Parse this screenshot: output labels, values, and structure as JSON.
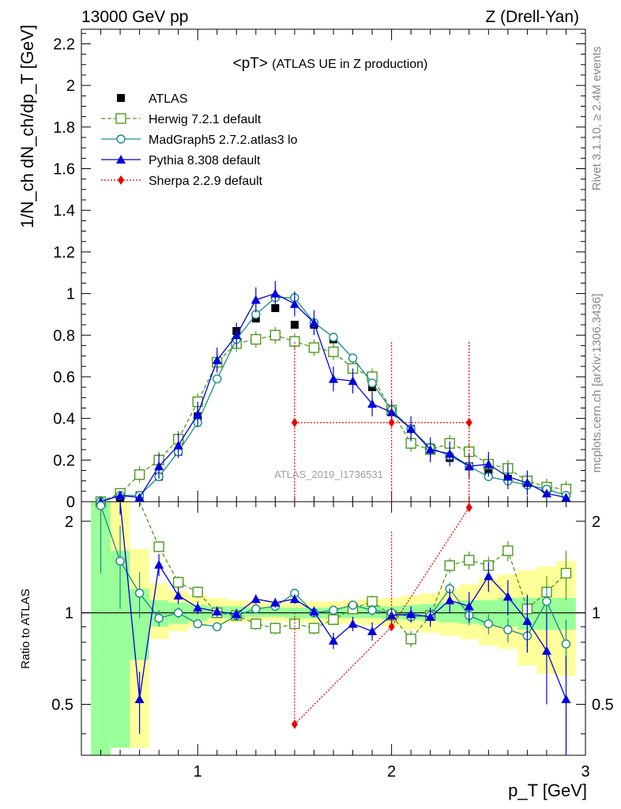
{
  "header": {
    "left": "13000 GeV pp",
    "right": "Z (Drell-Yan)"
  },
  "side_labels": {
    "rivet": "Rivet 3.1.10, ≥ 2.4M events",
    "mcplots": "mcplots.cern.ch [arXiv:1306.3436]"
  },
  "watermark": "ATLAS_2019_I1736531",
  "colors": {
    "atlas": "#000000",
    "herwig": "#4c9a1a",
    "madgraph": "#1a8a8a",
    "pythia": "#0000dd",
    "sherpa": "#ee0000",
    "band_inner": "#99ff99",
    "band_outer": "#ffff99"
  },
  "chart_data": [
    {
      "type": "line",
      "panel": "main",
      "title": "<pT> (ATLAS UE in Z production)",
      "title_main": "<pT>",
      "title_rest": "(ATLAS UE in Z production)",
      "ylabel": "1/N_ch dN_ch/dp_T [GeV]",
      "xlim": [
        0.4,
        3.0
      ],
      "ylim": [
        0,
        2.27
      ],
      "yticks": [
        "0",
        "0.2",
        "0.4",
        "0.6",
        "0.8",
        "1",
        "1.2",
        "1.4",
        "1.6",
        "1.8",
        "2",
        "2.2"
      ],
      "legend_position": "top-left",
      "series": [
        {
          "name": "ATLAS",
          "style": "data",
          "x": [
            0.5,
            0.6,
            0.7,
            0.8,
            0.9,
            1.0,
            1.1,
            1.2,
            1.3,
            1.4,
            1.5,
            1.6,
            1.7,
            1.8,
            1.9,
            2.0,
            2.1,
            2.2,
            2.3,
            2.4,
            2.5,
            2.6,
            2.7,
            2.8,
            2.9
          ],
          "y": [
            0.0,
            0.02,
            0.03,
            0.12,
            0.24,
            0.41,
            0.67,
            0.82,
            0.88,
            0.93,
            0.85,
            0.85,
            0.78,
            0.64,
            0.55,
            0.43,
            0.35,
            0.26,
            0.21,
            0.17,
            0.14,
            0.11,
            0.09,
            0.06,
            0.04
          ]
        },
        {
          "name": "Herwig 7.2.1 default",
          "style": "dashed",
          "marker": "open-square",
          "x": [
            0.5,
            0.6,
            0.7,
            0.8,
            0.9,
            1.0,
            1.1,
            1.2,
            1.3,
            1.4,
            1.5,
            1.6,
            1.7,
            1.8,
            1.9,
            2.0,
            2.1,
            2.2,
            2.3,
            2.4,
            2.5,
            2.6,
            2.7,
            2.8,
            2.9
          ],
          "y": [
            0.0,
            0.04,
            0.13,
            0.2,
            0.3,
            0.48,
            0.67,
            0.76,
            0.78,
            0.8,
            0.77,
            0.74,
            0.72,
            0.64,
            0.6,
            0.44,
            0.28,
            0.25,
            0.28,
            0.24,
            0.18,
            0.16,
            0.1,
            0.07,
            0.06
          ],
          "err": 0.04
        },
        {
          "name": "MadGraph5 2.7.2.atlas3 lo",
          "style": "solid",
          "marker": "open-circle",
          "x": [
            0.5,
            0.6,
            0.7,
            0.8,
            0.9,
            1.0,
            1.1,
            1.2,
            1.3,
            1.4,
            1.5,
            1.6,
            1.7,
            1.8,
            1.9,
            2.0,
            2.1,
            2.2,
            2.3,
            2.4,
            2.5,
            2.6,
            2.7,
            2.8,
            2.9
          ],
          "y": [
            0.0,
            0.03,
            0.03,
            0.12,
            0.24,
            0.38,
            0.59,
            0.78,
            0.9,
            0.98,
            0.98,
            0.86,
            0.79,
            0.69,
            0.57,
            0.44,
            0.35,
            0.26,
            0.22,
            0.17,
            0.12,
            0.1,
            0.08,
            0.06,
            0.03
          ],
          "err": 0.02
        },
        {
          "name": "Pythia 8.308 default",
          "style": "solid",
          "marker": "filled-triangle",
          "x": [
            0.5,
            0.6,
            0.7,
            0.8,
            0.9,
            1.0,
            1.1,
            1.2,
            1.3,
            1.4,
            1.5,
            1.6,
            1.7,
            1.8,
            1.9,
            2.0,
            2.1,
            2.2,
            2.3,
            2.4,
            2.5,
            2.6,
            2.7,
            2.8,
            2.9
          ],
          "y": [
            0.0,
            0.03,
            0.02,
            0.17,
            0.27,
            0.42,
            0.68,
            0.8,
            0.97,
            1.0,
            0.95,
            0.86,
            0.59,
            0.58,
            0.47,
            0.43,
            0.35,
            0.25,
            0.23,
            0.17,
            0.18,
            0.12,
            0.09,
            0.04,
            0.02
          ],
          "err": 0.06
        },
        {
          "name": "Sherpa 2.2.9 default",
          "style": "dotted",
          "marker": "filled-diamond",
          "x": [
            1.5,
            2.0,
            2.4
          ],
          "y": [
            0.38,
            0.38,
            0.38
          ],
          "xerr": [
            [
              1.5,
              2.0
            ],
            [
              2.0,
              2.4
            ],
            [
              2.4,
              2.4
            ]
          ],
          "yerr": [
            [
              0.0,
              0.77
            ],
            [
              0.0,
              0.77
            ],
            [
              0.0,
              0.77
            ]
          ]
        }
      ]
    },
    {
      "type": "line",
      "panel": "ratio",
      "ylabel": "Ratio to ATLAS",
      "xlabel": "p_T [GeV]",
      "xlim": [
        0.4,
        3.0
      ],
      "ylim": [
        0.34,
        2.32
      ],
      "log_y": true,
      "yticks": [
        "0.5",
        "1",
        "2"
      ],
      "xticks": [
        "1",
        "2",
        "3"
      ],
      "uncertainty_band": {
        "x_edges": [
          0.45,
          0.55,
          0.65,
          0.75,
          0.85,
          0.95,
          1.05,
          1.15,
          1.25,
          1.35,
          1.45,
          1.55,
          1.65,
          1.75,
          1.85,
          1.95,
          2.05,
          2.15,
          2.25,
          2.35,
          2.45,
          2.55,
          2.65,
          2.75,
          2.85,
          2.95
        ],
        "inner_low": [
          0.34,
          0.36,
          0.7,
          0.9,
          0.92,
          0.94,
          0.96,
          0.96,
          0.97,
          0.97,
          0.96,
          0.96,
          0.96,
          0.96,
          0.96,
          0.95,
          0.95,
          0.94,
          0.93,
          0.92,
          0.91,
          0.9,
          0.88,
          0.88,
          0.88
        ],
        "inner_high": [
          2.32,
          1.6,
          1.2,
          1.1,
          1.08,
          1.06,
          1.05,
          1.05,
          1.04,
          1.04,
          1.04,
          1.04,
          1.04,
          1.04,
          1.05,
          1.05,
          1.06,
          1.07,
          1.08,
          1.1,
          1.1,
          1.12,
          1.12,
          1.12,
          1.12
        ],
        "outer_low": [
          0.34,
          0.36,
          0.36,
          0.82,
          0.87,
          0.9,
          0.92,
          0.93,
          0.94,
          0.94,
          0.93,
          0.93,
          0.92,
          0.92,
          0.91,
          0.9,
          0.88,
          0.86,
          0.84,
          0.82,
          0.78,
          0.76,
          0.67,
          0.63,
          0.62
        ],
        "outer_high": [
          2.32,
          2.32,
          1.62,
          1.25,
          1.18,
          1.14,
          1.12,
          1.1,
          1.09,
          1.09,
          1.09,
          1.09,
          1.09,
          1.1,
          1.11,
          1.12,
          1.14,
          1.16,
          1.2,
          1.24,
          1.3,
          1.34,
          1.38,
          1.42,
          1.48
        ]
      },
      "series": [
        {
          "name": "Herwig 7.2.1 default",
          "style": "dashed",
          "marker": "open-square",
          "x": [
            0.5,
            0.6,
            0.7,
            0.8,
            0.9,
            1.0,
            1.1,
            1.2,
            1.3,
            1.4,
            1.5,
            1.6,
            1.7,
            1.8,
            1.9,
            2.0,
            2.1,
            2.2,
            2.3,
            2.4,
            2.5,
            2.6,
            2.7,
            2.8,
            2.9
          ],
          "y": [
            null,
            null,
            2.7,
            1.65,
            1.26,
            1.17,
            1.0,
            0.98,
            0.92,
            0.89,
            0.92,
            0.89,
            0.95,
            1.03,
            1.09,
            0.98,
            0.82,
            0.98,
            1.43,
            1.49,
            1.43,
            1.6,
            1.03,
            1.17,
            1.35
          ],
          "err": [
            0,
            0,
            0.1,
            0.07,
            0.06,
            0.05,
            0.04,
            0.04,
            0.04,
            0.04,
            0.04,
            0.04,
            0.04,
            0.04,
            0.05,
            0.05,
            0.05,
            0.06,
            0.08,
            0.1,
            0.1,
            0.12,
            0.12,
            0.15,
            0.25
          ]
        },
        {
          "name": "MadGraph5 2.7.2.atlas3 lo",
          "style": "solid",
          "marker": "open-circle",
          "x": [
            0.5,
            0.6,
            0.7,
            0.8,
            0.9,
            1.0,
            1.1,
            1.2,
            1.3,
            1.4,
            1.5,
            1.6,
            1.7,
            1.8,
            1.9,
            2.0,
            2.1,
            2.2,
            2.3,
            2.4,
            2.5,
            2.6,
            2.7,
            2.8,
            2.9
          ],
          "y": [
            2.25,
            1.48,
            1.16,
            0.96,
            1.0,
            0.92,
            0.9,
            0.98,
            1.03,
            1.05,
            1.16,
            1.0,
            1.02,
            1.06,
            1.02,
            1.0,
            0.97,
            0.98,
            1.2,
            0.98,
            0.92,
            0.88,
            0.84,
            1.09,
            0.79
          ],
          "err": [
            0.9,
            0.45,
            0.2,
            0.06,
            0.04,
            0.03,
            0.03,
            0.03,
            0.03,
            0.03,
            0.03,
            0.03,
            0.03,
            0.03,
            0.04,
            0.04,
            0.04,
            0.05,
            0.06,
            0.07,
            0.07,
            0.08,
            0.1,
            0.14,
            0.16
          ]
        },
        {
          "name": "Pythia 8.308 default",
          "style": "solid",
          "marker": "filled-triangle",
          "x": [
            0.6,
            0.7,
            0.8,
            0.9,
            1.0,
            1.1,
            1.2,
            1.3,
            1.4,
            1.5,
            1.6,
            1.7,
            1.8,
            1.9,
            2.0,
            2.1,
            2.2,
            2.3,
            2.4,
            2.5,
            2.6,
            2.7,
            2.8,
            2.9
          ],
          "y": [
            2.6,
            0.52,
            1.44,
            1.14,
            1.04,
            1.01,
            0.99,
            1.11,
            1.08,
            1.11,
            1.01,
            0.81,
            0.92,
            0.87,
            0.98,
            0.99,
            0.97,
            1.1,
            1.05,
            1.32,
            1.13,
            0.94,
            0.75,
            0.52
          ],
          "err": [
            0.5,
            0.12,
            0.12,
            0.07,
            0.05,
            0.04,
            0.04,
            0.04,
            0.04,
            0.04,
            0.04,
            0.05,
            0.05,
            0.06,
            0.06,
            0.06,
            0.07,
            0.1,
            0.12,
            0.15,
            0.15,
            0.2,
            0.25,
            0.2
          ]
        },
        {
          "name": "Sherpa 2.2.9 default",
          "style": "dotted",
          "marker": "filled-diamond",
          "x": [
            1.5,
            2.0,
            2.4
          ],
          "y": [
            0.43,
            0.9,
            2.22
          ],
          "yerr_hi": [
            1.0,
            1.85,
            2.32
          ]
        }
      ]
    }
  ]
}
